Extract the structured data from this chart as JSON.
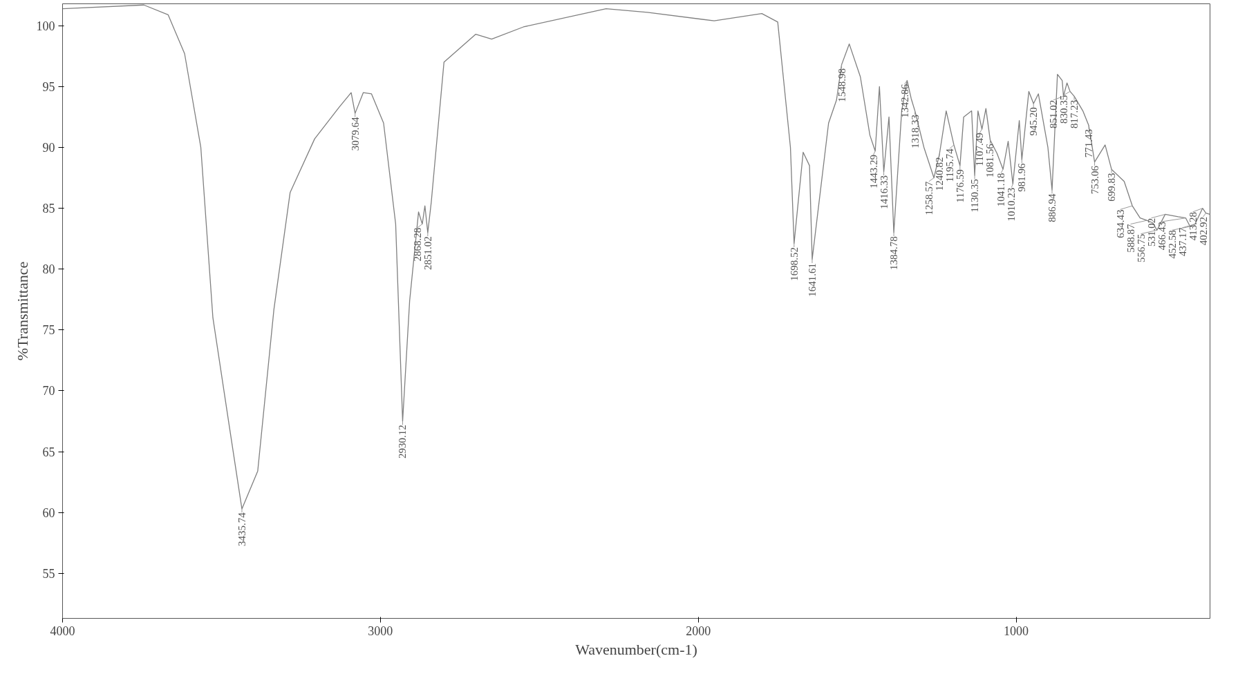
{
  "chart_data": {
    "type": "line",
    "xlabel": "Wavenumber(cm-1)",
    "ylabel": "%Transmittance",
    "xlim": [
      4000,
      390
    ],
    "ylim": [
      51.3,
      101.8
    ],
    "xticks": [
      4000,
      3000,
      2000,
      1000
    ],
    "yticks": [
      55,
      60,
      65,
      70,
      75,
      80,
      85,
      90,
      95,
      100
    ],
    "grid": false,
    "marker": "none",
    "line_style": "solid",
    "series": [
      {
        "color": "#7f7f7f",
        "x": [
          4000,
          3744,
          3668,
          3616,
          3565,
          3527,
          3476,
          3435.74,
          3386,
          3335,
          3284,
          3207,
          3130,
          3092,
          3079.64,
          3054,
          3028,
          2990,
          2952,
          2930.12,
          2908,
          2880,
          2868.28,
          2860,
          2851.02,
          2840,
          2800,
          2700,
          2650,
          2550,
          2290,
          2160,
          1950,
          1800,
          1750,
          1710,
          1698.52,
          1670,
          1650,
          1641.61,
          1590,
          1565,
          1548.98,
          1525,
          1490,
          1460,
          1443.29,
          1430,
          1416.33,
          1400,
          1384.78,
          1360,
          1342.86,
          1330,
          1318.33,
          1290,
          1258.57,
          1240.82,
          1220,
          1195.74,
          1176.59,
          1165,
          1140,
          1130.35,
          1120,
          1107.49,
          1095,
          1081.56,
          1060,
          1041.18,
          1025,
          1010.23,
          990,
          981.96,
          960,
          945.2,
          930,
          900,
          886.94,
          870,
          855,
          851.02,
          840,
          830.35,
          817.23,
          790,
          771.43,
          753.06,
          720,
          699.83,
          660,
          634.43,
          610,
          588.87,
          570,
          556.75,
          531.02,
          490,
          466.43,
          452.58,
          437.17,
          413.28,
          402.92,
          390
        ],
        "values": [
          101.4,
          101.7,
          100.9,
          97.7,
          90,
          76,
          67.2,
          60.3,
          63.4,
          76.7,
          86.3,
          90.7,
          93.3,
          94.5,
          92.8,
          94.5,
          94.4,
          92,
          83.7,
          67.5,
          77.4,
          84.7,
          83.7,
          85.2,
          83,
          85.5,
          97,
          99.3,
          98.9,
          99.9,
          101.4,
          101.1,
          100.4,
          101,
          100.3,
          90,
          82.1,
          89.6,
          88.5,
          80.8,
          92,
          93.9,
          96.8,
          98.5,
          95.8,
          91,
          89.7,
          95,
          88,
          92.5,
          83,
          93,
          95.5,
          94,
          93,
          90,
          87.5,
          89.5,
          93,
          90.2,
          88.5,
          92.5,
          93,
          87.7,
          93,
          91.5,
          93.2,
          90.6,
          89.5,
          88.2,
          90.5,
          87,
          92.2,
          89,
          94.6,
          93.6,
          94.4,
          90,
          86.5,
          96,
          95.5,
          94.2,
          95.3,
          94.6,
          94.2,
          93,
          91.8,
          88.8,
          90.2,
          88.2,
          87.2,
          85.2,
          84.2,
          84,
          83.8,
          83.2,
          84.5,
          84.3,
          84.2,
          83.5,
          83.7,
          85,
          84.6,
          84.5
        ]
      }
    ],
    "annotations": [
      {
        "text": "3435.74",
        "x": 3435.74,
        "y": 60.3
      },
      {
        "text": "3079.64",
        "x": 3079.64,
        "y": 92.8
      },
      {
        "text": "2930.12",
        "x": 2930.12,
        "y": 67.5
      },
      {
        "text": "2868.28",
        "x": 2868.28,
        "y": 83.7
      },
      {
        "text": "2851.02",
        "x": 2851.02,
        "y": 83
      },
      {
        "text": "1698.52",
        "x": 1698.52,
        "y": 82.1
      },
      {
        "text": "1641.61",
        "x": 1641.61,
        "y": 80.8
      },
      {
        "text": "1548.98",
        "x": 1548.98,
        "y": 96.8
      },
      {
        "text": "1443.29",
        "x": 1443.29,
        "y": 89.7
      },
      {
        "text": "1416.33",
        "x": 1416.33,
        "y": 88
      },
      {
        "text": "1384.78",
        "x": 1384.78,
        "y": 83
      },
      {
        "text": "1342.86",
        "x": 1342.86,
        "y": 95.5
      },
      {
        "text": "1318.33",
        "x": 1318.33,
        "y": 93
      },
      {
        "text": "1258.57",
        "x": 1258.57,
        "y": 87.5
      },
      {
        "text": "1240.82",
        "x": 1240.82,
        "y": 89.5
      },
      {
        "text": "1195.74",
        "x": 1195.74,
        "y": 90.2
      },
      {
        "text": "1176.59",
        "x": 1176.59,
        "y": 88.5
      },
      {
        "text": "1130.35",
        "x": 1130.35,
        "y": 87.7
      },
      {
        "text": "1107.49",
        "x": 1107.49,
        "y": 91.5
      },
      {
        "text": "1081.56",
        "x": 1081.56,
        "y": 90.6
      },
      {
        "text": "1041.18",
        "x": 1041.18,
        "y": 88.2
      },
      {
        "text": "1010.23",
        "x": 1010.23,
        "y": 87
      },
      {
        "text": "981.96",
        "x": 981.96,
        "y": 89
      },
      {
        "text": "945.20",
        "x": 945.2,
        "y": 93.6
      },
      {
        "text": "886.94",
        "x": 886.94,
        "y": 86.5
      },
      {
        "text": "851.02",
        "x": 851.02,
        "y": 94.2
      },
      {
        "text": "830.35",
        "x": 830.35,
        "y": 94.6
      },
      {
        "text": "817.23",
        "x": 817.23,
        "y": 94.2
      },
      {
        "text": "771.43",
        "x": 771.43,
        "y": 91.8
      },
      {
        "text": "753.06",
        "x": 753.06,
        "y": 88.8
      },
      {
        "text": "699.83",
        "x": 699.83,
        "y": 88.2
      },
      {
        "text": "634.43",
        "x": 634.43,
        "y": 85.2
      },
      {
        "text": "588.87",
        "x": 588.87,
        "y": 84
      },
      {
        "text": "556.75",
        "x": 556.75,
        "y": 83.2
      },
      {
        "text": "531.02",
        "x": 531.02,
        "y": 84.5
      },
      {
        "text": "466.43",
        "x": 466.43,
        "y": 84.2
      },
      {
        "text": "452.58",
        "x": 452.58,
        "y": 83.5
      },
      {
        "text": "437.17",
        "x": 437.17,
        "y": 83.7
      },
      {
        "text": "413.28",
        "x": 413.28,
        "y": 85
      },
      {
        "text": "402.92",
        "x": 402.92,
        "y": 84.6
      }
    ]
  }
}
